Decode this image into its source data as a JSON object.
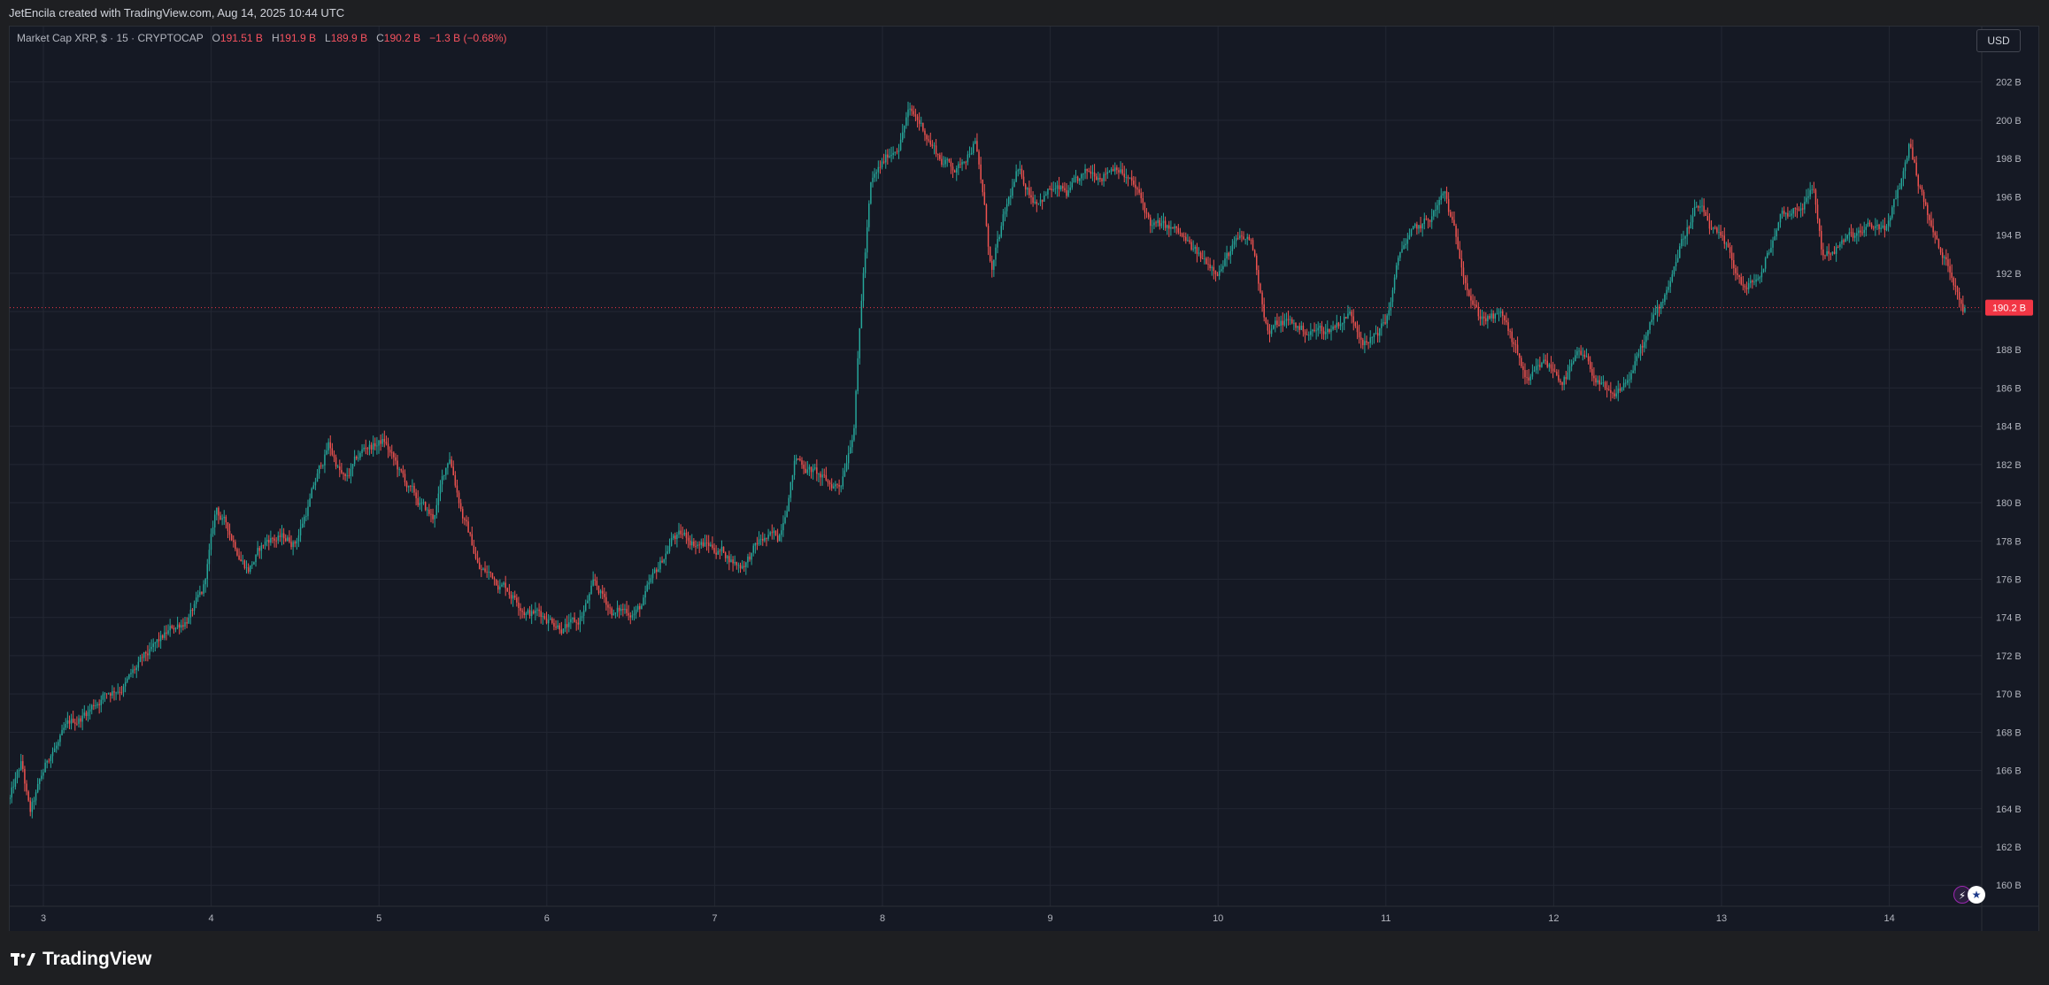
{
  "header": {
    "credit": "JetEncila created with TradingView.com, Aug 14, 2025 10:44 UTC"
  },
  "legend": {
    "symbol": "Market Cap XRP, $ · 15 · CRYPTOCAP",
    "open_label": "O",
    "open": "191.51 B",
    "high_label": "H",
    "high": "191.9 B",
    "low_label": "L",
    "low": "189.9 B",
    "close_label": "C",
    "close": "190.2 B",
    "change": "−1.3 B (−0.68%)"
  },
  "currency_button": "USD",
  "last_price_label": "190.2 B",
  "footer": {
    "brand": "TradingView"
  },
  "colors": {
    "up": "#26a69a",
    "down": "#ef5350",
    "background": "#151924",
    "grid": "#232733",
    "price_tag": "#f23645"
  },
  "icons": [
    "lightning-icon",
    "us-flag-icon"
  ],
  "chart_data": {
    "type": "candlestick",
    "interval": "15",
    "y_unit": "B USD",
    "ylim": [
      158.9,
      204.9
    ],
    "y_ticks": [
      202,
      200,
      198,
      196,
      194,
      192,
      188,
      186,
      184,
      182,
      180,
      178,
      176,
      174,
      172,
      170,
      168,
      166,
      164,
      162,
      160
    ],
    "y_tick_labels": [
      "202 B",
      "200 B",
      "198 B",
      "196 B",
      "194 B",
      "192 B",
      "188 B",
      "186 B",
      "184 B",
      "182 B",
      "180 B",
      "178 B",
      "176 B",
      "174 B",
      "172 B",
      "170 B",
      "168 B",
      "166 B",
      "164 B",
      "162 B",
      "160 B"
    ],
    "x_ticks": [
      "3",
      "4",
      "5",
      "6",
      "7",
      "8",
      "9",
      "10",
      "11",
      "12",
      "13",
      "14"
    ],
    "x_range_days": [
      2.8,
      14.45
    ],
    "last_close": 190.2,
    "path": [
      [
        2.8,
        164.5
      ],
      [
        2.87,
        166.2
      ],
      [
        2.92,
        163.5
      ],
      [
        3.05,
        167.0
      ],
      [
        3.2,
        168.5
      ],
      [
        3.35,
        170.0
      ],
      [
        3.5,
        170.8
      ],
      [
        3.65,
        172.0
      ],
      [
        3.8,
        173.5
      ],
      [
        3.95,
        175.0
      ],
      [
        4.03,
        179.5
      ],
      [
        4.1,
        178.5
      ],
      [
        4.22,
        176.8
      ],
      [
        4.35,
        178.2
      ],
      [
        4.5,
        178.0
      ],
      [
        4.6,
        180.5
      ],
      [
        4.7,
        183.0
      ],
      [
        4.8,
        181.0
      ],
      [
        4.92,
        182.8
      ],
      [
        5.03,
        183.2
      ],
      [
        5.12,
        181.5
      ],
      [
        5.22,
        180.0
      ],
      [
        5.32,
        179.0
      ],
      [
        5.42,
        182.5
      ],
      [
        5.5,
        179.5
      ],
      [
        5.6,
        176.5
      ],
      [
        5.75,
        175.8
      ],
      [
        5.9,
        174.5
      ],
      [
        6.05,
        174.0
      ],
      [
        6.18,
        173.5
      ],
      [
        6.28,
        175.5
      ],
      [
        6.4,
        174.2
      ],
      [
        6.55,
        174.5
      ],
      [
        6.65,
        176.0
      ],
      [
        6.75,
        178.2
      ],
      [
        6.9,
        178.0
      ],
      [
        7.05,
        177.5
      ],
      [
        7.15,
        176.8
      ],
      [
        7.28,
        178.0
      ],
      [
        7.38,
        178.0
      ],
      [
        7.48,
        182.5
      ],
      [
        7.58,
        181.8
      ],
      [
        7.68,
        180.8
      ],
      [
        7.75,
        181.0
      ],
      [
        7.83,
        184.5
      ],
      [
        7.88,
        191.5
      ],
      [
        7.93,
        196.5
      ],
      [
        8.0,
        197.5
      ],
      [
        8.1,
        199.0
      ],
      [
        8.15,
        200.5
      ],
      [
        8.25,
        199.5
      ],
      [
        8.35,
        198.0
      ],
      [
        8.45,
        197.5
      ],
      [
        8.55,
        199.2
      ],
      [
        8.6,
        196.0
      ],
      [
        8.65,
        192.0
      ],
      [
        8.72,
        194.5
      ],
      [
        8.8,
        197.0
      ],
      [
        8.9,
        196.0
      ],
      [
        9.0,
        196.5
      ],
      [
        9.1,
        196.0
      ],
      [
        9.25,
        197.0
      ],
      [
        9.4,
        198.0
      ],
      [
        9.5,
        196.5
      ],
      [
        9.6,
        194.5
      ],
      [
        9.75,
        194.0
      ],
      [
        9.9,
        192.5
      ],
      [
        10.0,
        192.5
      ],
      [
        10.1,
        193.5
      ],
      [
        10.2,
        193.5
      ],
      [
        10.3,
        189.0
      ],
      [
        10.4,
        189.5
      ],
      [
        10.5,
        189.0
      ],
      [
        10.65,
        189.0
      ],
      [
        10.78,
        190.0
      ],
      [
        10.9,
        188.5
      ],
      [
        11.0,
        189.5
      ],
      [
        11.1,
        193.5
      ],
      [
        11.25,
        194.5
      ],
      [
        11.35,
        196.0
      ],
      [
        11.42,
        193.5
      ],
      [
        11.55,
        190.0
      ],
      [
        11.7,
        189.5
      ],
      [
        11.85,
        186.0
      ],
      [
        11.95,
        187.0
      ],
      [
        12.05,
        186.5
      ],
      [
        12.15,
        187.5
      ],
      [
        12.25,
        186.5
      ],
      [
        12.35,
        185.0
      ],
      [
        12.45,
        186.5
      ],
      [
        12.55,
        188.5
      ],
      [
        12.65,
        190.5
      ],
      [
        12.75,
        193.5
      ],
      [
        12.85,
        195.5
      ],
      [
        12.95,
        194.0
      ],
      [
        13.05,
        192.5
      ],
      [
        13.15,
        191.0
      ],
      [
        13.25,
        192.0
      ],
      [
        13.35,
        195.0
      ],
      [
        13.45,
        195.5
      ],
      [
        13.55,
        196.5
      ],
      [
        13.6,
        193.0
      ],
      [
        13.7,
        193.5
      ],
      [
        13.85,
        194.0
      ],
      [
        14.0,
        194.5
      ],
      [
        14.08,
        197.0
      ],
      [
        14.12,
        198.8
      ],
      [
        14.2,
        196.0
      ],
      [
        14.3,
        193.0
      ],
      [
        14.4,
        191.5
      ],
      [
        14.45,
        190.2
      ]
    ]
  }
}
